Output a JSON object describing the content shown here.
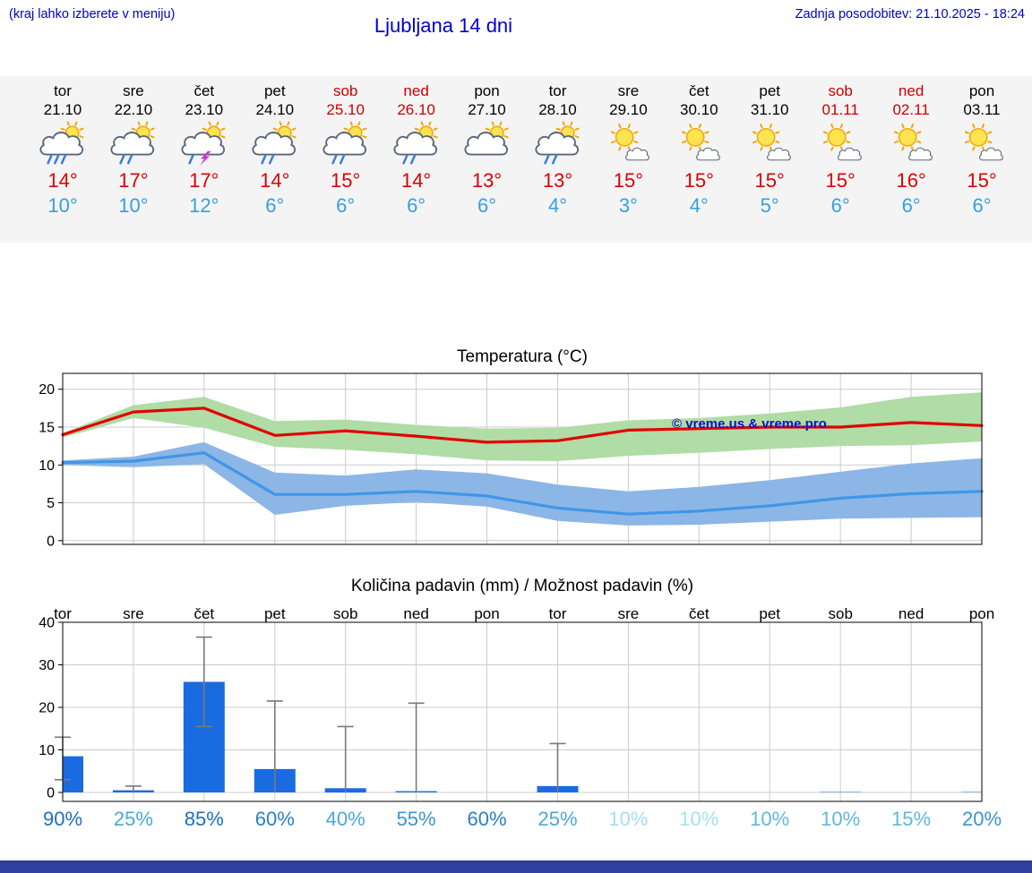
{
  "header": {
    "note": "(kraj lahko izberete v meniju)",
    "title": "Ljubljana 14 dni",
    "updated": "Zadnja posodobitev: 21.10.2025 - 18:24"
  },
  "colors": {
    "header_blue": "#0000cc",
    "weekend_red": "#cc0000",
    "tmax_red": "#dd0000",
    "tmin_blue": "#35a0e0",
    "strip_bg": "#f4f4f4",
    "footer_bar": "#2e3f9e",
    "grid_gray": "#cccccc"
  },
  "days": [
    {
      "name": "tor",
      "date": "21.10",
      "weekend": false,
      "icon": "sun-cloud-heavy-rain",
      "tmax": "14°",
      "tmin": "10°"
    },
    {
      "name": "sre",
      "date": "22.10",
      "weekend": false,
      "icon": "sun-cloud-light-rain",
      "tmax": "17°",
      "tmin": "10°"
    },
    {
      "name": "čet",
      "date": "23.10",
      "weekend": false,
      "icon": "sun-cloud-storm",
      "tmax": "17°",
      "tmin": "12°"
    },
    {
      "name": "pet",
      "date": "24.10",
      "weekend": false,
      "icon": "sun-cloud-light-rain",
      "tmax": "14°",
      "tmin": "6°"
    },
    {
      "name": "sob",
      "date": "25.10",
      "weekend": true,
      "icon": "sun-cloud-light-rain",
      "tmax": "15°",
      "tmin": "6°"
    },
    {
      "name": "ned",
      "date": "26.10",
      "weekend": true,
      "icon": "sun-cloud-light-rain",
      "tmax": "14°",
      "tmin": "6°"
    },
    {
      "name": "pon",
      "date": "27.10",
      "weekend": false,
      "icon": "sun-cloud",
      "tmax": "13°",
      "tmin": "6°"
    },
    {
      "name": "tor",
      "date": "28.10",
      "weekend": false,
      "icon": "sun-cloud-light-rain",
      "tmax": "13°",
      "tmin": "4°"
    },
    {
      "name": "sre",
      "date": "29.10",
      "weekend": false,
      "icon": "mostly-sunny",
      "tmax": "15°",
      "tmin": "3°"
    },
    {
      "name": "čet",
      "date": "30.10",
      "weekend": false,
      "icon": "mostly-sunny",
      "tmax": "15°",
      "tmin": "4°"
    },
    {
      "name": "pet",
      "date": "31.10",
      "weekend": false,
      "icon": "mostly-sunny",
      "tmax": "15°",
      "tmin": "5°"
    },
    {
      "name": "sob",
      "date": "01.11",
      "weekend": true,
      "icon": "mostly-sunny",
      "tmax": "15°",
      "tmin": "6°"
    },
    {
      "name": "ned",
      "date": "02.11",
      "weekend": true,
      "icon": "mostly-sunny",
      "tmax": "16°",
      "tmin": "6°"
    },
    {
      "name": "pon",
      "date": "03.11",
      "weekend": false,
      "icon": "mostly-sunny",
      "tmax": "15°",
      "tmin": "6°"
    }
  ],
  "chart_data": [
    {
      "type": "line",
      "title": "Temperatura (°C)",
      "categories": [
        "tor",
        "sre",
        "čet",
        "pet",
        "sob",
        "ned",
        "pon",
        "tor",
        "sre",
        "čet",
        "pet",
        "sob",
        "ned",
        "pon"
      ],
      "ylim": [
        -0.5,
        22.1
      ],
      "yticks": [
        0,
        5,
        10,
        15,
        20
      ],
      "grid": true,
      "legend": "none",
      "watermark": "© vreme.us & vreme.pro",
      "watermark_color": "#1010cc",
      "series": [
        {
          "name": "max-temp",
          "color": "#e10000",
          "values": [
            14.0,
            17.0,
            17.5,
            13.9,
            14.5,
            13.8,
            13.0,
            13.2,
            14.6,
            14.8,
            15.0,
            15.0,
            15.6,
            15.2
          ]
        },
        {
          "name": "min-temp",
          "color": "#3f96e8",
          "values": [
            10.3,
            10.5,
            11.6,
            6.1,
            6.1,
            6.5,
            5.9,
            4.3,
            3.5,
            3.9,
            4.6,
            5.6,
            6.2,
            6.5
          ]
        }
      ],
      "bands": [
        {
          "name": "max-temp-range",
          "color": "#b0dca6",
          "upper": [
            14.2,
            17.9,
            19.0,
            15.8,
            16.0,
            15.3,
            14.8,
            14.9,
            15.9,
            16.2,
            16.8,
            17.6,
            19.0,
            19.6
          ],
          "lower": [
            13.6,
            16.2,
            14.9,
            12.4,
            12.0,
            11.4,
            10.6,
            10.5,
            11.2,
            11.6,
            12.1,
            12.5,
            12.6,
            13.1
          ]
        },
        {
          "name": "min-temp-range",
          "color": "#8cb6e6",
          "upper": [
            10.6,
            11.1,
            13.0,
            9.0,
            8.6,
            9.4,
            8.9,
            7.4,
            6.5,
            7.1,
            8.0,
            9.1,
            10.2,
            10.9
          ],
          "lower": [
            10.0,
            9.7,
            10.1,
            3.4,
            4.6,
            5.1,
            4.5,
            2.6,
            2.0,
            2.1,
            2.5,
            2.9,
            3.0,
            3.1
          ]
        }
      ]
    },
    {
      "type": "bar",
      "title": "Količina padavin (mm) / Možnost padavin (%)",
      "categories": [
        "tor",
        "sre",
        "čet",
        "pet",
        "sob",
        "ned",
        "pon",
        "tor",
        "sre",
        "čet",
        "pet",
        "sob",
        "ned",
        "pon"
      ],
      "ylim": [
        -2.1,
        40
      ],
      "yticks": [
        0,
        10,
        20,
        30,
        40
      ],
      "grid": true,
      "bar_color": "#1b6be0",
      "whisker_color": "#7a7a7a",
      "values": [
        8.5,
        0.5,
        26.0,
        5.5,
        1.0,
        0.3,
        0,
        1.5,
        0,
        0,
        0,
        0.1,
        0,
        0.1
      ],
      "whisker_low": [
        3.0,
        0,
        15.5,
        0,
        0,
        0,
        0,
        0,
        0,
        0,
        0,
        0,
        0,
        0
      ],
      "whisker_high": [
        13.0,
        1.5,
        36.5,
        21.5,
        15.5,
        21.0,
        0,
        11.5,
        0,
        0,
        0,
        0,
        0,
        0
      ],
      "probabilities": [
        {
          "label": "90%",
          "color": "#1b6ec2"
        },
        {
          "label": "25%",
          "color": "#4da6d9"
        },
        {
          "label": "85%",
          "color": "#1b6ec2"
        },
        {
          "label": "60%",
          "color": "#2b80c6"
        },
        {
          "label": "40%",
          "color": "#4da6d9"
        },
        {
          "label": "55%",
          "color": "#3b93cf"
        },
        {
          "label": "60%",
          "color": "#2b80c6"
        },
        {
          "label": "25%",
          "color": "#4da6d9"
        },
        {
          "label": "10%",
          "color": "#a5e0ef"
        },
        {
          "label": "10%",
          "color": "#a5e0ef"
        },
        {
          "label": "10%",
          "color": "#5fb7e0"
        },
        {
          "label": "10%",
          "color": "#5fb7e0"
        },
        {
          "label": "15%",
          "color": "#5fb7e0"
        },
        {
          "label": "20%",
          "color": "#3b93cf"
        }
      ]
    }
  ]
}
